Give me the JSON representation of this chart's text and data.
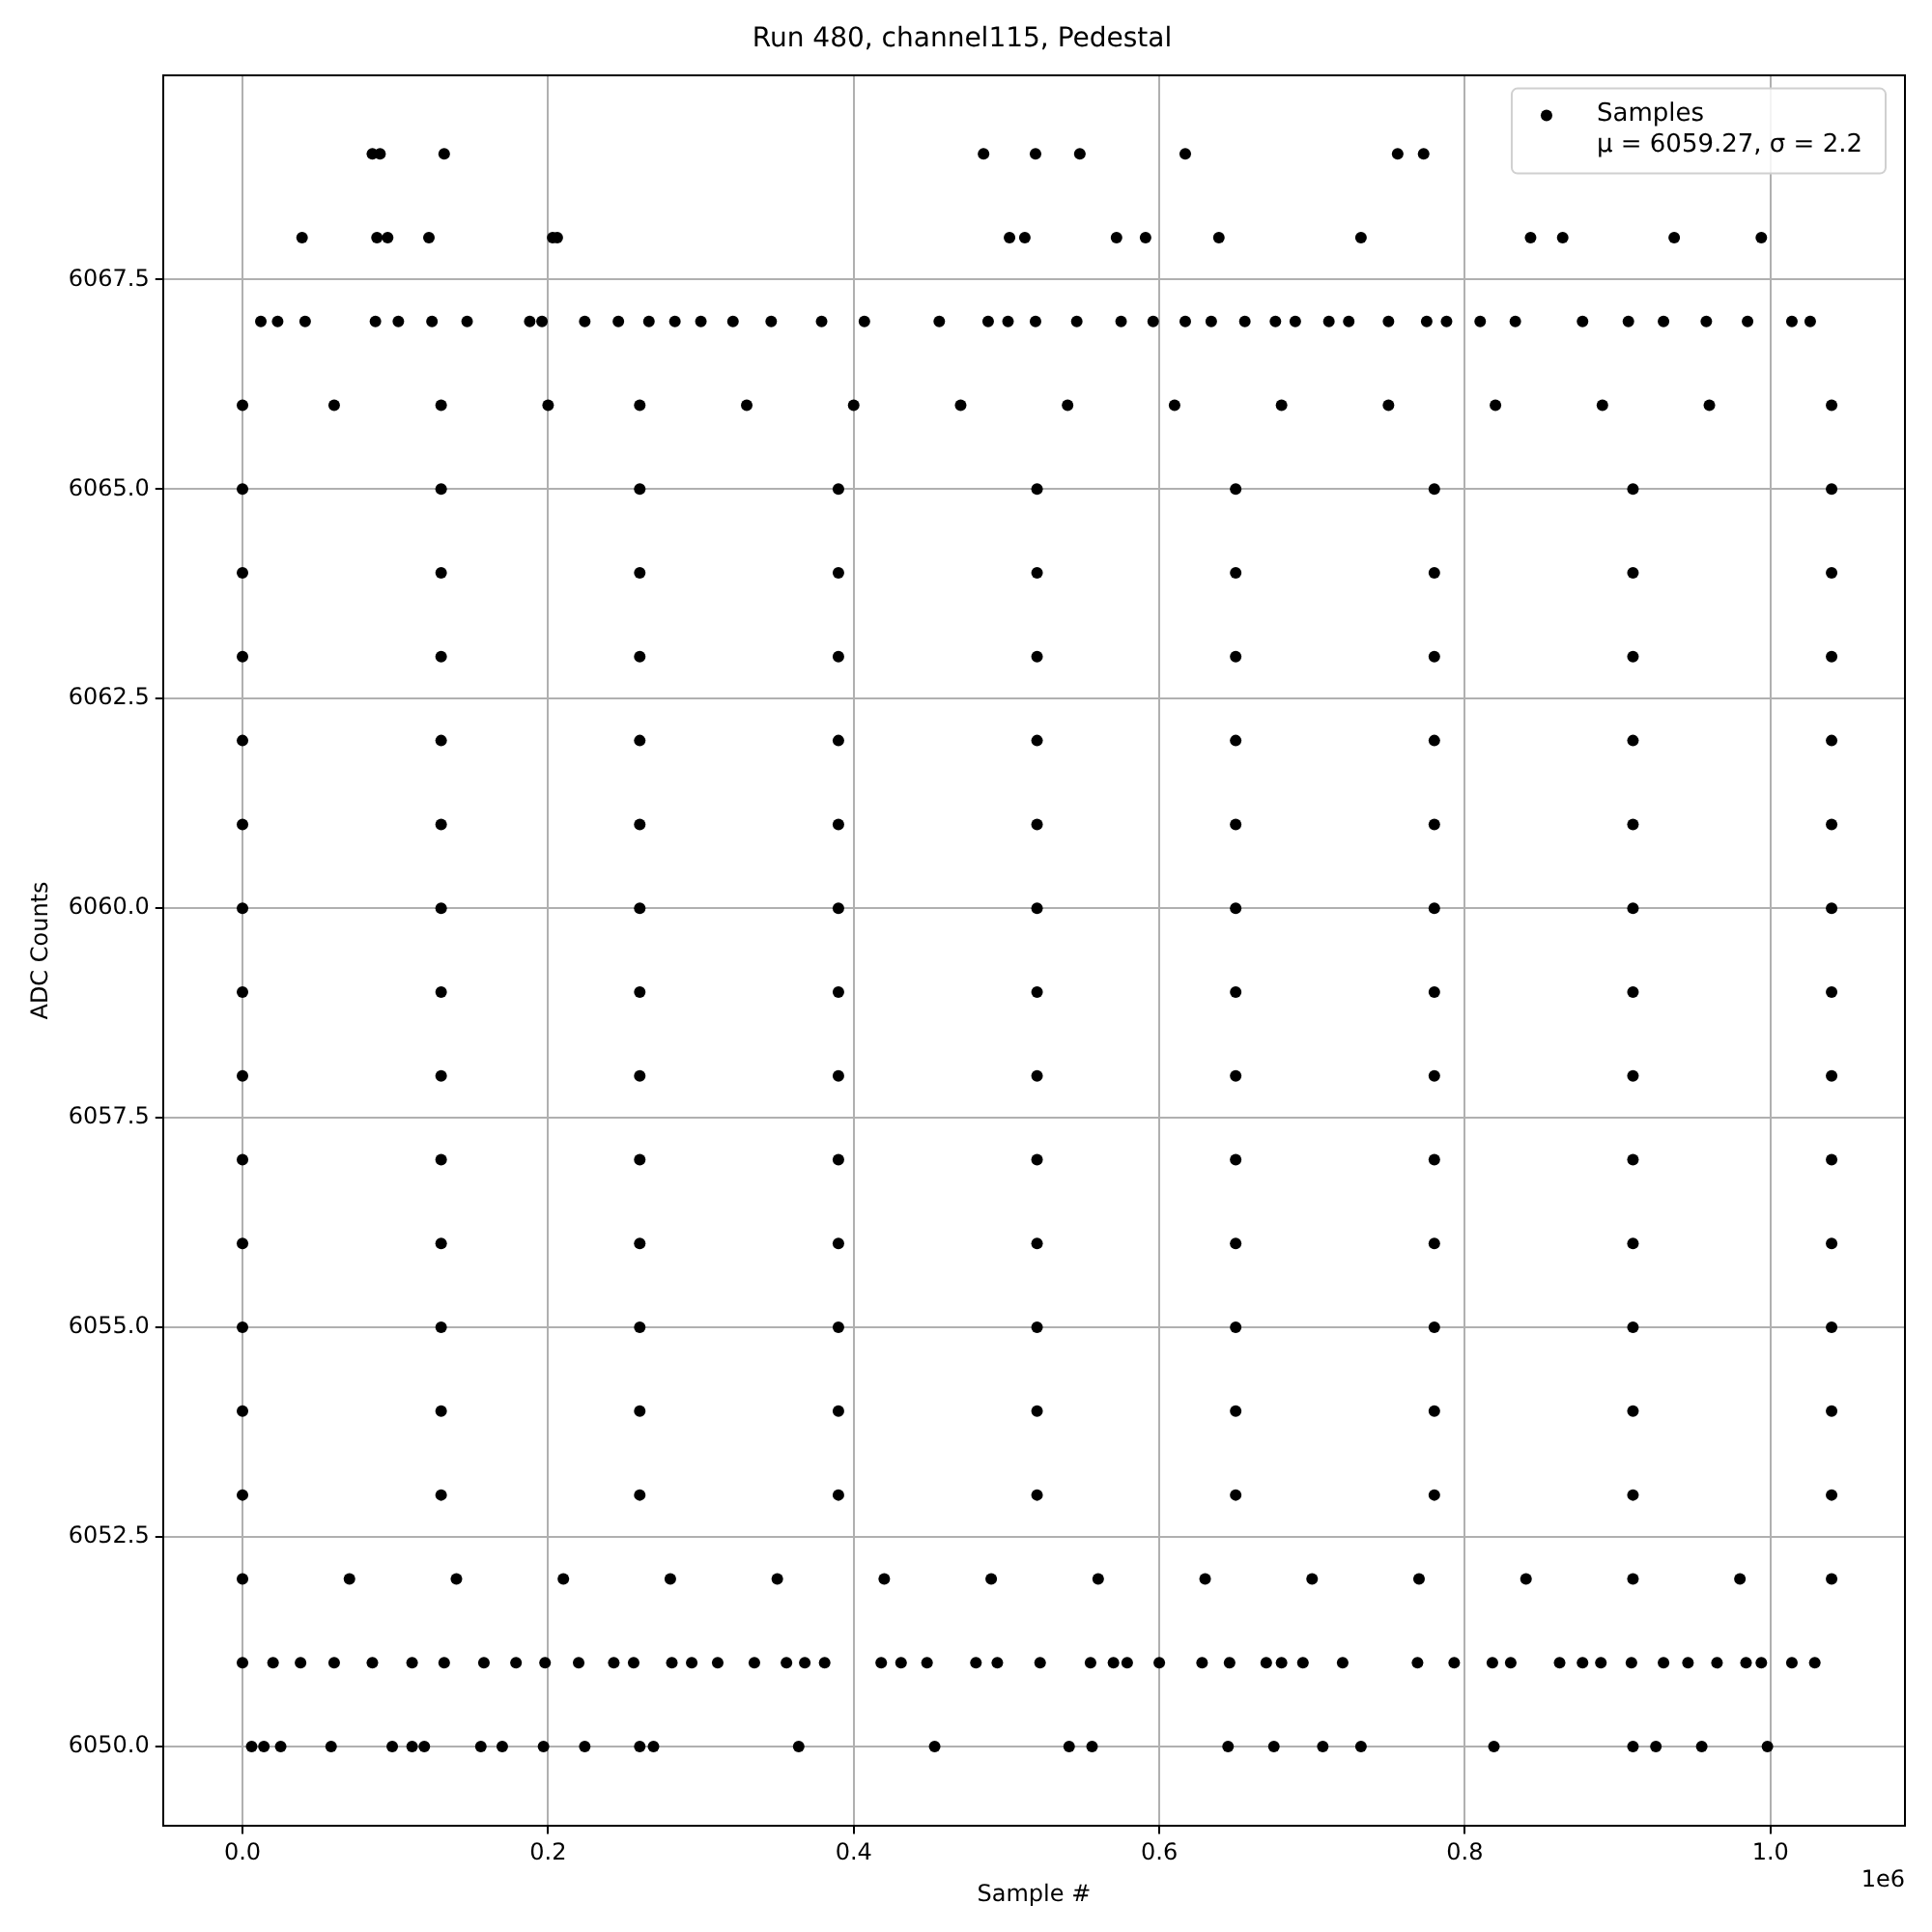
{
  "chart_data": {
    "type": "scatter",
    "title": "Run 480, channel115, Pedestal",
    "xlabel": "Sample #",
    "ylabel": "ADC Counts",
    "annotations": [
      "1e6"
    ],
    "xlim": [
      -0.052,
      1.088
    ],
    "xticks": [
      {
        "value": 0,
        "label": "0.0"
      },
      0.2,
      0.4,
      0.6,
      0.8,
      {
        "value": 1,
        "label": "1.0"
      }
    ],
    "ylim": [
      6049.05,
      6069.94
    ],
    "yticks": [
      {
        "value": 6050,
        "label": "6050.0"
      },
      {
        "value": 6052.5,
        "label": "6052.5"
      },
      {
        "value": 6055,
        "label": "6055.0"
      },
      {
        "value": 6057.5,
        "label": "6057.5"
      },
      {
        "value": 6060,
        "label": "6060.0"
      },
      {
        "value": 6062.5,
        "label": "6062.5"
      },
      {
        "value": 6065,
        "label": "6065.0"
      },
      {
        "value": 6067.5,
        "label": "6067.5"
      }
    ],
    "grid": true,
    "legend": "top right",
    "marker": "circle",
    "series": [
      {
        "name": "Samples\nμ = 6059.27, σ = 2.2",
        "color": "#000000",
        "x": [
          0.085,
          0.09,
          0.132,
          0.485,
          0.519,
          0.548,
          0.617,
          0.756,
          0.773,
          0.039,
          0.088,
          0.095,
          0.122,
          0.203,
          0.206,
          0.502,
          0.512,
          0.572,
          0.591,
          0.639,
          0.732,
          0.843,
          0.864,
          0.937,
          0.994,
          0.012,
          0.023,
          0.041,
          0.087,
          0.102,
          0.124,
          0.147,
          0.188,
          0.196,
          0.224,
          0.246,
          0.266,
          0.283,
          0.3,
          0.321,
          0.346,
          0.379,
          0.407,
          0.456,
          0.488,
          0.501,
          0.519,
          0.546,
          0.575,
          0.596,
          0.617,
          0.634,
          0.656,
          0.676,
          0.689,
          0.711,
          0.724,
          0.75,
          0.775,
          0.788,
          0.81,
          0.833,
          0.877,
          0.907,
          0.93,
          0.958,
          0.985,
          1.014,
          1.026,
          0,
          0.06,
          0.13,
          0.2,
          0.26,
          0.33,
          0.4,
          0.47,
          0.54,
          0.61,
          0.68,
          0.75,
          0.82,
          0.89,
          0.96,
          1.04,
          0,
          0.13,
          0.26,
          0.39,
          0.52,
          0.65,
          0.78,
          0.91,
          1.04,
          0,
          0.13,
          0.26,
          0.39,
          0.52,
          0.65,
          0.78,
          0.91,
          1.04,
          0,
          0.13,
          0.26,
          0.39,
          0.52,
          0.65,
          0.78,
          0.91,
          1.04,
          0,
          0.13,
          0.26,
          0.39,
          0.52,
          0.65,
          0.78,
          0.91,
          1.04,
          0,
          0.13,
          0.26,
          0.39,
          0.52,
          0.65,
          0.78,
          0.91,
          1.04,
          0,
          0.13,
          0.26,
          0.39,
          0.52,
          0.65,
          0.78,
          0.91,
          1.04,
          0,
          0.13,
          0.26,
          0.39,
          0.52,
          0.65,
          0.78,
          0.91,
          1.04,
          0,
          0.13,
          0.26,
          0.39,
          0.52,
          0.65,
          0.78,
          0.91,
          1.04,
          0,
          0.13,
          0.26,
          0.39,
          0.52,
          0.65,
          0.78,
          0.91,
          1.04,
          0,
          0.13,
          0.26,
          0.39,
          0.52,
          0.65,
          0.78,
          0.91,
          1.04,
          0,
          0.13,
          0.26,
          0.39,
          0.52,
          0.65,
          0.78,
          0.91,
          1.04,
          0,
          0.13,
          0.26,
          0.39,
          0.52,
          0.65,
          0.78,
          0.91,
          1.04,
          0,
          0.13,
          0.26,
          0.39,
          0.52,
          0.65,
          0.78,
          0.91,
          1.04,
          0,
          0.07,
          0.14,
          0.21,
          0.28,
          0.35,
          0.42,
          0.49,
          0.56,
          0.63,
          0.7,
          0.77,
          0.84,
          0.91,
          0.98,
          1.04,
          0,
          0.02,
          0.038,
          0.06,
          0.085,
          0.111,
          0.132,
          0.158,
          0.179,
          0.198,
          0.22,
          0.243,
          0.256,
          0.281,
          0.294,
          0.311,
          0.335,
          0.356,
          0.368,
          0.381,
          0.418,
          0.431,
          0.448,
          0.48,
          0.494,
          0.522,
          0.555,
          0.57,
          0.579,
          0.6,
          0.628,
          0.646,
          0.67,
          0.68,
          0.694,
          0.72,
          0.769,
          0.793,
          0.818,
          0.83,
          0.862,
          0.877,
          0.889,
          0.909,
          0.93,
          0.946,
          0.965,
          0.984,
          0.994,
          1.014,
          1.029,
          0.006,
          0.014,
          0.025,
          0.058,
          0.098,
          0.111,
          0.119,
          0.156,
          0.17,
          0.197,
          0.224,
          0.26,
          0.269,
          0.364,
          0.453,
          0.541,
          0.556,
          0.645,
          0.675,
          0.707,
          0.732,
          0.819,
          0.91,
          0.925,
          0.955,
          0.998
        ],
        "values": [
          6069,
          6069,
          6069,
          6069,
          6069,
          6069,
          6069,
          6069,
          6069,
          6068,
          6068,
          6068,
          6068,
          6068,
          6068,
          6068,
          6068,
          6068,
          6068,
          6068,
          6068,
          6068,
          6068,
          6068,
          6068,
          6067,
          6067,
          6067,
          6067,
          6067,
          6067,
          6067,
          6067,
          6067,
          6067,
          6067,
          6067,
          6067,
          6067,
          6067,
          6067,
          6067,
          6067,
          6067,
          6067,
          6067,
          6067,
          6067,
          6067,
          6067,
          6067,
          6067,
          6067,
          6067,
          6067,
          6067,
          6067,
          6067,
          6067,
          6067,
          6067,
          6067,
          6067,
          6067,
          6067,
          6067,
          6067,
          6067,
          6067,
          6066,
          6066,
          6066,
          6066,
          6066,
          6066,
          6066,
          6066,
          6066,
          6066,
          6066,
          6066,
          6066,
          6066,
          6066,
          6066,
          6065,
          6065,
          6065,
          6065,
          6065,
          6065,
          6065,
          6065,
          6065,
          6064,
          6064,
          6064,
          6064,
          6064,
          6064,
          6064,
          6064,
          6064,
          6063,
          6063,
          6063,
          6063,
          6063,
          6063,
          6063,
          6063,
          6063,
          6062,
          6062,
          6062,
          6062,
          6062,
          6062,
          6062,
          6062,
          6062,
          6061,
          6061,
          6061,
          6061,
          6061,
          6061,
          6061,
          6061,
          6061,
          6060,
          6060,
          6060,
          6060,
          6060,
          6060,
          6060,
          6060,
          6060,
          6059,
          6059,
          6059,
          6059,
          6059,
          6059,
          6059,
          6059,
          6059,
          6058,
          6058,
          6058,
          6058,
          6058,
          6058,
          6058,
          6058,
          6058,
          6057,
          6057,
          6057,
          6057,
          6057,
          6057,
          6057,
          6057,
          6057,
          6056,
          6056,
          6056,
          6056,
          6056,
          6056,
          6056,
          6056,
          6056,
          6055,
          6055,
          6055,
          6055,
          6055,
          6055,
          6055,
          6055,
          6055,
          6054,
          6054,
          6054,
          6054,
          6054,
          6054,
          6054,
          6054,
          6054,
          6053,
          6053,
          6053,
          6053,
          6053,
          6053,
          6053,
          6053,
          6053,
          6052,
          6052,
          6052,
          6052,
          6052,
          6052,
          6052,
          6052,
          6052,
          6052,
          6052,
          6052,
          6052,
          6052,
          6052,
          6052,
          6051,
          6051,
          6051,
          6051,
          6051,
          6051,
          6051,
          6051,
          6051,
          6051,
          6051,
          6051,
          6051,
          6051,
          6051,
          6051,
          6051,
          6051,
          6051,
          6051,
          6051,
          6051,
          6051,
          6051,
          6051,
          6051,
          6051,
          6051,
          6051,
          6051,
          6051,
          6051,
          6051,
          6051,
          6051,
          6051,
          6051,
          6051,
          6051,
          6051,
          6051,
          6051,
          6051,
          6051,
          6051,
          6051,
          6051,
          6051,
          6051,
          6051,
          6051,
          6050,
          6050,
          6050,
          6050,
          6050,
          6050,
          6050,
          6050,
          6050,
          6050,
          6050,
          6050,
          6050,
          6050,
          6050,
          6050,
          6050,
          6050,
          6050,
          6050,
          6050,
          6050,
          6050,
          6050,
          6050,
          6050
        ]
      }
    ]
  }
}
